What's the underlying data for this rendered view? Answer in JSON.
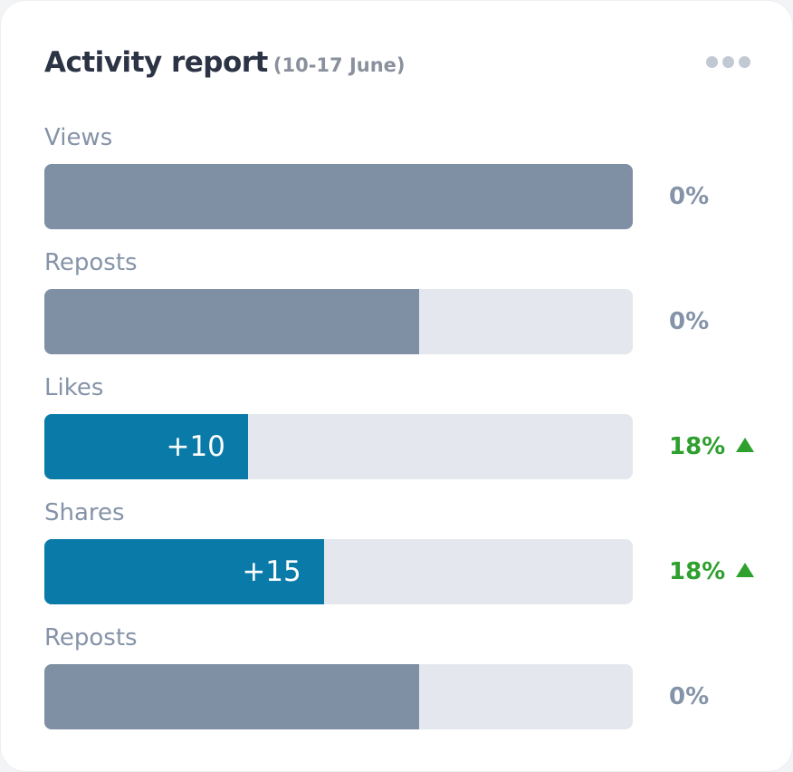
{
  "header": {
    "title": "Activity report",
    "subtitle": "(10-17 June)"
  },
  "rows": [
    {
      "label": "Views",
      "fill": 100,
      "color": "#7f8fa4",
      "change": "0%",
      "trend": "flat"
    },
    {
      "label": "Reposts",
      "fill": 63.7,
      "color": "#7f8fa4",
      "change": "0%",
      "trend": "flat"
    },
    {
      "label": "Likes",
      "fill": 34.6,
      "color": "#0a7ba8",
      "badge": "+10",
      "change": "18%",
      "trend": "up"
    },
    {
      "label": "Shares",
      "fill": 47.5,
      "color": "#0a7ba8",
      "badge": "+15",
      "change": "18%",
      "trend": "up"
    },
    {
      "label": "Reposts",
      "fill": 63.7,
      "color": "#7f8fa4",
      "change": "0%",
      "trend": "flat"
    }
  ]
}
